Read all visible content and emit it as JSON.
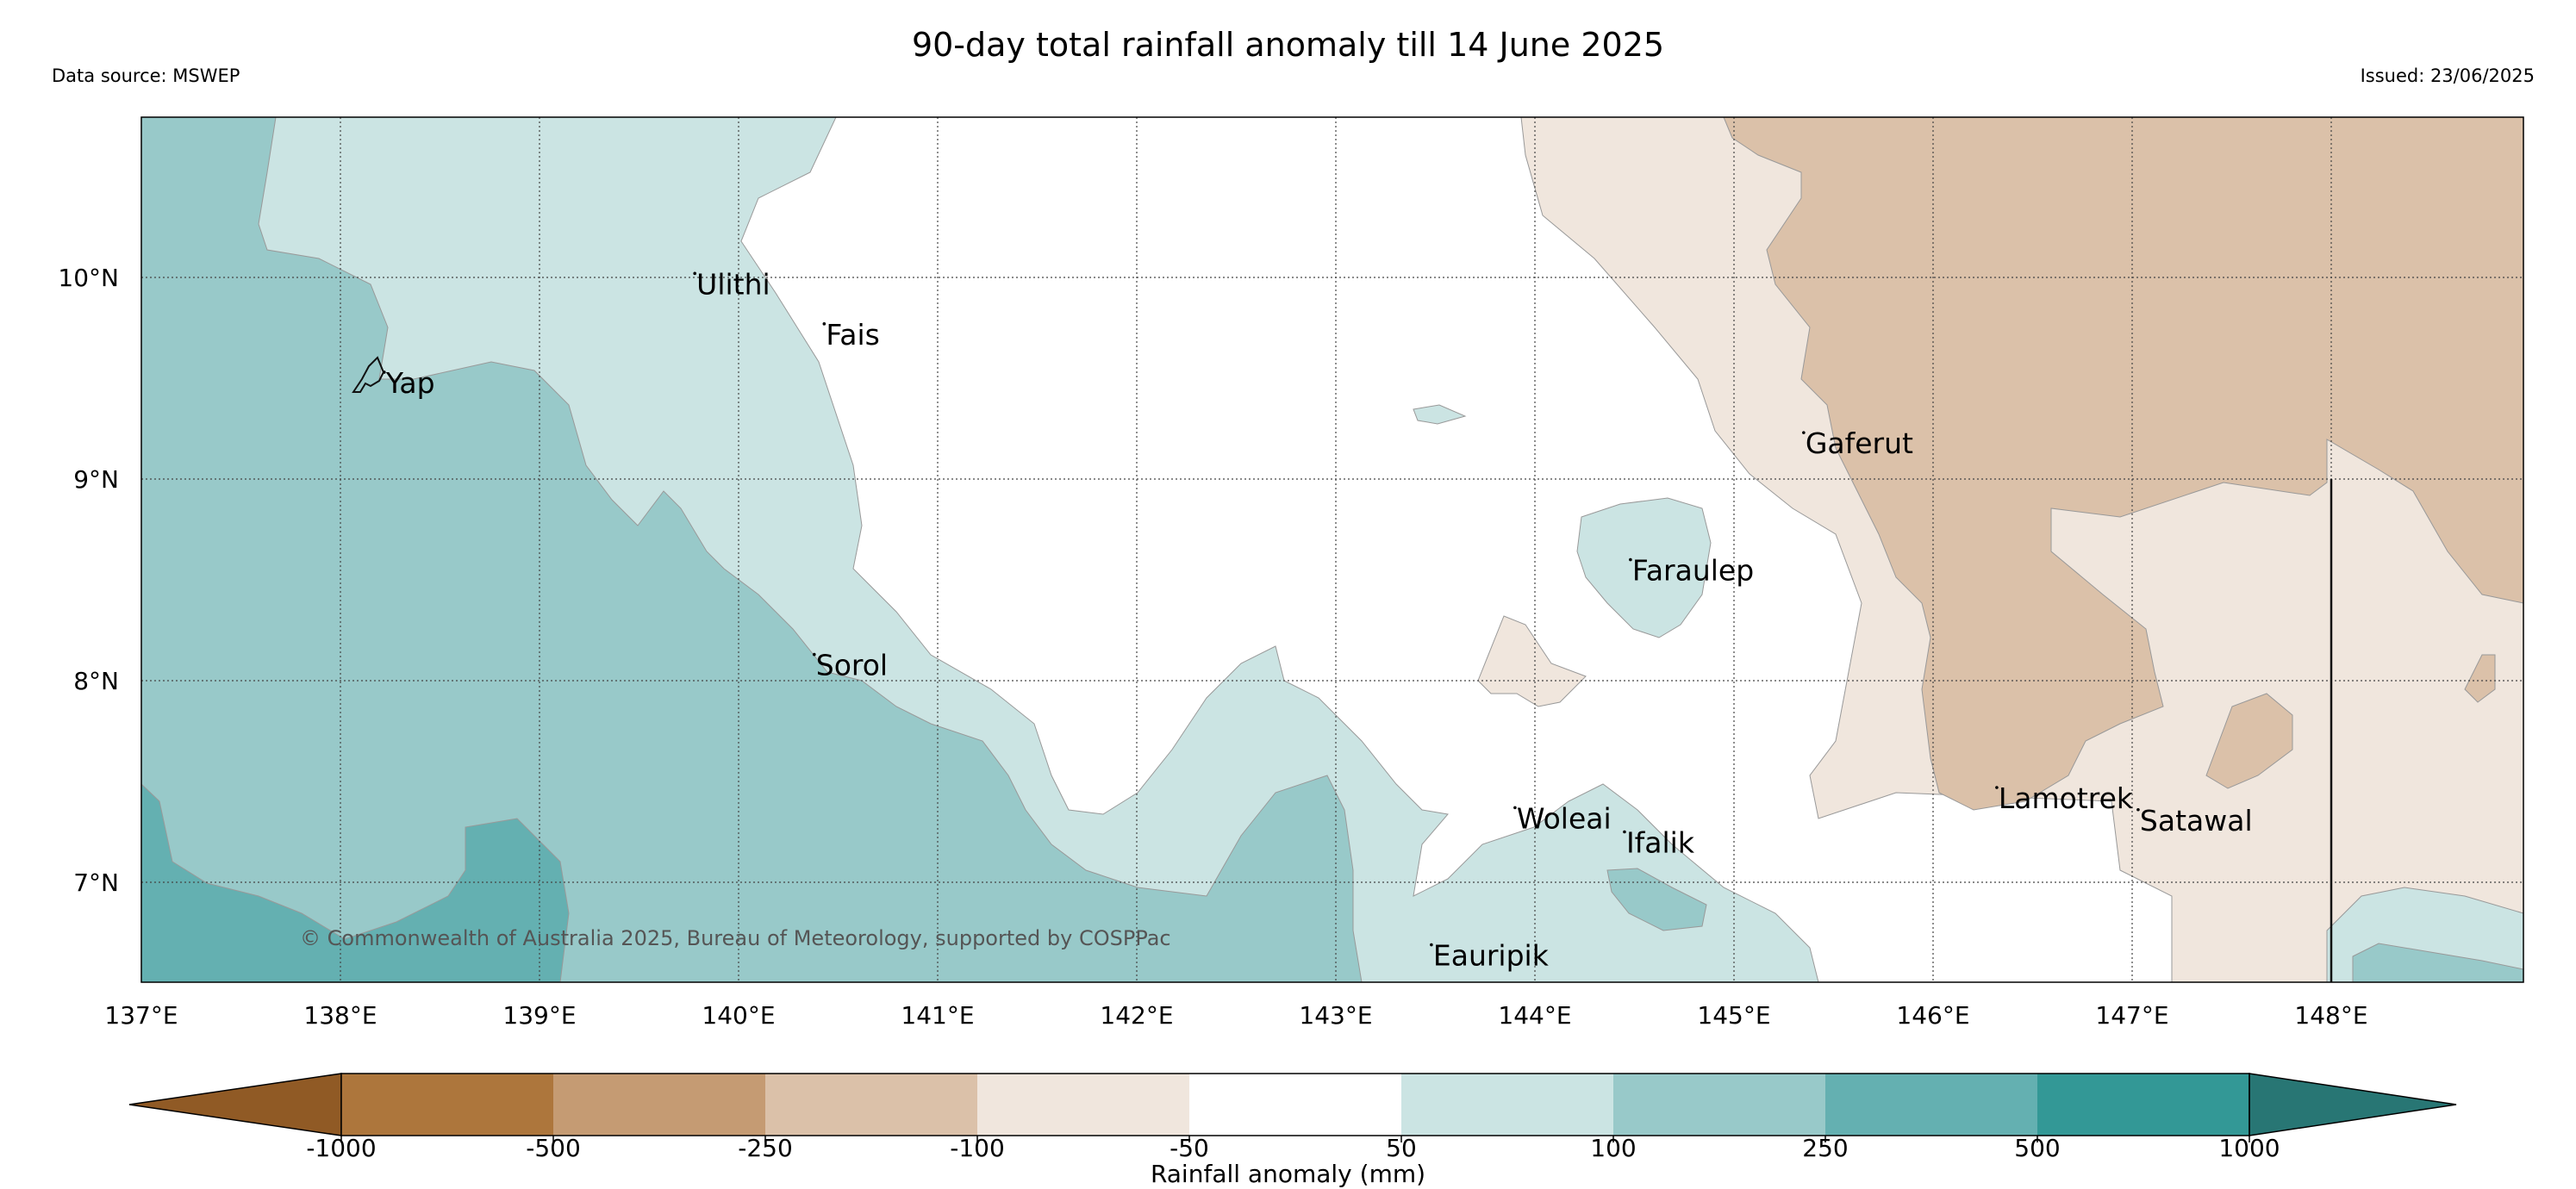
{
  "title": "90-day total rainfall anomaly till 14 June 2025",
  "source": "Data source: MSWEP",
  "issued": "Issued: 23/06/2025",
  "copyright": "© Commonwealth of Australia 2025, Bureau of Meteorology, supported by COSPPac",
  "colors": {
    "dry_lt_1000": "#905a25",
    "dry_1000_500": "#ad763c",
    "dry_500_250": "#c59b73",
    "dry_250_100": "#dbc1a9",
    "dry_100_50": "#f0e6dd",
    "neutral": "#ffffff",
    "wet_50_100": "#cbe4e3",
    "wet_100_250": "#98c9c9",
    "wet_250_500": "#64b0b1",
    "wet_500_1000": "#339896",
    "wet_gt_1000": "#287674"
  },
  "lon_ticks": [
    "137°E",
    "138°E",
    "139°E",
    "140°E",
    "141°E",
    "142°E",
    "143°E",
    "144°E",
    "145°E",
    "146°E",
    "147°E",
    "148°E"
  ],
  "lat_ticks": [
    "10°N",
    "9°N",
    "8°N",
    "7°N"
  ],
  "places": [
    {
      "name": "Yap",
      "lon": 138.22,
      "lat": 9.53
    },
    {
      "name": "Ulithi",
      "lon": 139.78,
      "lat": 10.02
    },
    {
      "name": "Fais",
      "lon": 140.43,
      "lat": 9.77
    },
    {
      "name": "Sorol",
      "lon": 140.38,
      "lat": 8.13
    },
    {
      "name": "Gaferut",
      "lon": 145.35,
      "lat": 9.23
    },
    {
      "name": "Faraulep",
      "lon": 144.48,
      "lat": 8.6
    },
    {
      "name": "Woleai",
      "lon": 143.9,
      "lat": 7.37
    },
    {
      "name": "Ifalik",
      "lon": 144.45,
      "lat": 7.25
    },
    {
      "name": "Lamotrek",
      "lon": 146.32,
      "lat": 7.47
    },
    {
      "name": "Satawal",
      "lon": 147.03,
      "lat": 7.36
    },
    {
      "name": "Eauripik",
      "lon": 143.48,
      "lat": 6.69
    }
  ],
  "colorbar": {
    "label": "Rainfall anomaly (mm)",
    "ticks": [
      "-1000",
      "-500",
      "-250",
      "-100",
      "-50",
      "50",
      "100",
      "250",
      "500",
      "1000"
    ]
  }
}
